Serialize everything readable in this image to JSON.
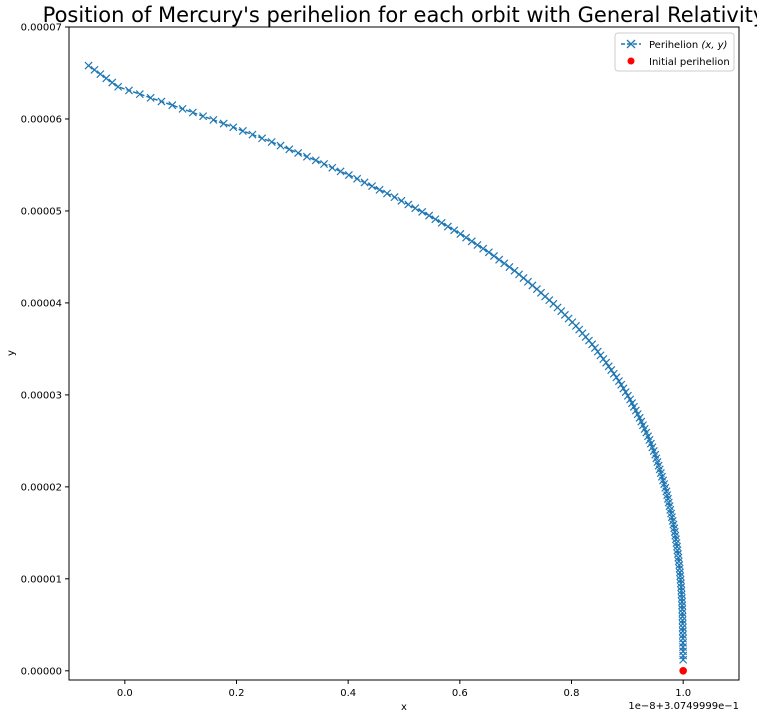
{
  "chart_data": {
    "type": "scatter",
    "title": "Position of Mercury's perihelion for each orbit with General Relativity",
    "xlabel": "x",
    "ylabel": "y",
    "x_offset_label": "1e−8+3.0749999e−1",
    "xlim": [
      -0.1,
      1.1
    ],
    "ylim": [
      -1e-06,
      7e-05
    ],
    "x_ticks": [
      0.0,
      0.2,
      0.4,
      0.6,
      0.8,
      1.0
    ],
    "x_tick_labels": [
      "0.0",
      "0.2",
      "0.4",
      "0.6",
      "0.8",
      "1.0"
    ],
    "y_ticks": [
      0,
      1e-05,
      2e-05,
      3e-05,
      4e-05,
      5e-05,
      6e-05,
      7e-05
    ],
    "y_tick_labels": [
      "0.00000",
      "0.00001",
      "0.00002",
      "0.00003",
      "0.00004",
      "0.00005",
      "0.00006",
      "0.00007"
    ],
    "grid": false,
    "legend_position": "top-right",
    "colors": {
      "series": "#1f77b4",
      "initial": "#ff0000",
      "axes": "#000000",
      "background": "#ffffff"
    },
    "series": [
      {
        "name": "Perihelion (x, y)",
        "legend_label": "Perihelion ",
        "legend_math": "(x, y)",
        "marker": "x",
        "line_style": "dashed",
        "points": [
          [
            1.0,
            1.2e-06
          ],
          [
            0.9996,
            3.5e-06
          ],
          [
            0.999,
            5.5e-06
          ],
          [
            0.998,
            7.5e-06
          ],
          [
            0.996,
            9.5e-06
          ],
          [
            0.993,
            1.15e-05
          ],
          [
            0.989,
            1.35e-05
          ],
          [
            0.984,
            1.55e-05
          ],
          [
            0.977,
            1.75e-05
          ],
          [
            0.97,
            1.95e-05
          ],
          [
            0.96,
            2.15e-05
          ],
          [
            0.95,
            2.35e-05
          ],
          [
            0.937,
            2.55e-05
          ],
          [
            0.922,
            2.75e-05
          ],
          [
            0.905,
            2.95e-05
          ],
          [
            0.885,
            3.15e-05
          ],
          [
            0.862,
            3.35e-05
          ],
          [
            0.837,
            3.55e-05
          ],
          [
            0.808,
            3.75e-05
          ],
          [
            0.775,
            3.95e-05
          ],
          [
            0.738,
            4.15e-05
          ],
          [
            0.698,
            4.35e-05
          ],
          [
            0.652,
            4.55e-05
          ],
          [
            0.601,
            4.75e-05
          ],
          [
            0.545,
            4.95e-05
          ],
          [
            0.483,
            5.15e-05
          ],
          [
            0.416,
            5.35e-05
          ],
          [
            0.342,
            5.55e-05
          ],
          [
            0.263,
            5.75e-05
          ],
          [
            0.177,
            5.95e-05
          ],
          [
            0.085,
            6.15e-05
          ],
          [
            -0.012,
            6.35e-05
          ],
          [
            -0.065,
            6.58e-05
          ]
        ]
      },
      {
        "name": "Initial perihelion",
        "marker": "o",
        "points": [
          [
            1.0,
            0.0
          ]
        ]
      }
    ]
  }
}
